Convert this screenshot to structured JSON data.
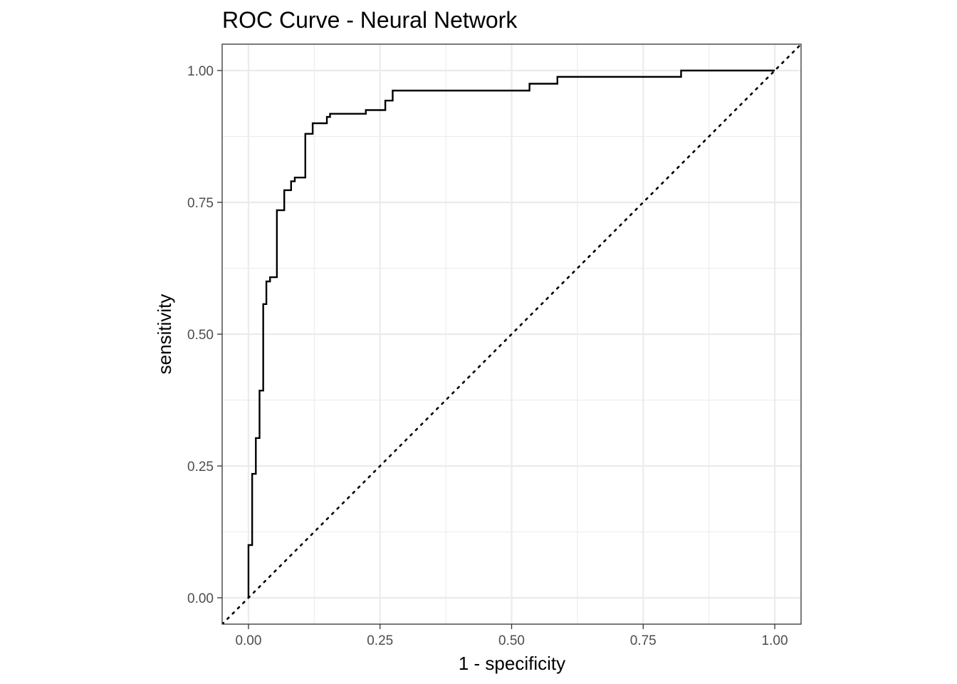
{
  "chart_data": {
    "type": "line",
    "title": "ROC Curve - Neural Network",
    "xlabel": "1 - specificity",
    "ylabel": "sensitivity",
    "xlim": [
      -0.05,
      1.05
    ],
    "ylim": [
      -0.05,
      1.05
    ],
    "x_ticks": [
      0,
      0.25,
      0.5,
      0.75,
      1
    ],
    "y_ticks": [
      0,
      0.25,
      0.5,
      0.75,
      1
    ],
    "x_tick_labels": [
      "0.00",
      "0.25",
      "0.50",
      "0.75",
      "1.00"
    ],
    "y_tick_labels": [
      "0.00",
      "0.25",
      "0.50",
      "0.75",
      "1.00"
    ],
    "grid": true,
    "series": [
      {
        "style": "step",
        "color": "#000000",
        "points": [
          [
            0.0,
            0.0
          ],
          [
            0.0,
            0.1
          ],
          [
            0.007,
            0.1
          ],
          [
            0.007,
            0.235
          ],
          [
            0.014,
            0.235
          ],
          [
            0.014,
            0.303
          ],
          [
            0.021,
            0.303
          ],
          [
            0.021,
            0.393
          ],
          [
            0.028,
            0.393
          ],
          [
            0.028,
            0.557
          ],
          [
            0.034,
            0.557
          ],
          [
            0.034,
            0.6
          ],
          [
            0.041,
            0.6
          ],
          [
            0.041,
            0.608
          ],
          [
            0.054,
            0.608
          ],
          [
            0.054,
            0.735
          ],
          [
            0.068,
            0.735
          ],
          [
            0.068,
            0.773
          ],
          [
            0.081,
            0.773
          ],
          [
            0.081,
            0.79
          ],
          [
            0.088,
            0.79
          ],
          [
            0.088,
            0.797
          ],
          [
            0.108,
            0.797
          ],
          [
            0.108,
            0.88
          ],
          [
            0.122,
            0.88
          ],
          [
            0.122,
            0.9
          ],
          [
            0.149,
            0.9
          ],
          [
            0.149,
            0.912
          ],
          [
            0.155,
            0.912
          ],
          [
            0.155,
            0.918
          ],
          [
            0.223,
            0.918
          ],
          [
            0.223,
            0.925
          ],
          [
            0.26,
            0.925
          ],
          [
            0.26,
            0.943
          ],
          [
            0.274,
            0.943
          ],
          [
            0.274,
            0.962
          ],
          [
            0.534,
            0.962
          ],
          [
            0.534,
            0.975
          ],
          [
            0.587,
            0.975
          ],
          [
            0.587,
            0.988
          ],
          [
            0.822,
            0.988
          ],
          [
            0.822,
            1.0
          ],
          [
            1.0,
            1.0
          ]
        ]
      },
      {
        "style": "reference-diagonal",
        "color": "#000000",
        "dash": "dotted",
        "points": [
          [
            -0.05,
            -0.05
          ],
          [
            1.05,
            1.05
          ]
        ]
      }
    ]
  }
}
